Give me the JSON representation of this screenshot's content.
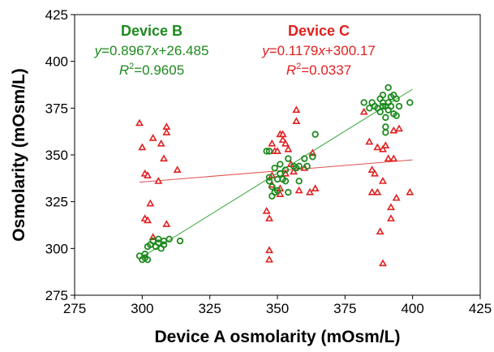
{
  "chart_data": {
    "type": "scatter",
    "xlabel": "Device A osmolarity (mOsm/L)",
    "ylabel": "Osmolarity (mOsm/L)",
    "xlim": [
      275,
      425
    ],
    "ylim": [
      275,
      425
    ],
    "xticks": [
      275,
      300,
      325,
      350,
      375,
      400,
      425
    ],
    "yticks": [
      275,
      300,
      325,
      350,
      375,
      400,
      425
    ],
    "xtick_labels": [
      "275",
      "300",
      "325",
      "350",
      "375",
      "400",
      "425"
    ],
    "ytick_labels": [
      "275",
      "300",
      "325",
      "350",
      "375",
      "400",
      "425"
    ],
    "grid": false,
    "legend": "none",
    "series": [
      {
        "name": "Device B",
        "marker": "circle",
        "color": "#1e8a1e",
        "line_color": "#3aa53a",
        "equation_prefix": "y",
        "equation_mid": "=0.8967",
        "equation_var": "x",
        "equation_suffix": "+26.485",
        "r2_label": "R",
        "r2_sup": "2",
        "r2_value": "=0.9605",
        "fit": {
          "slope": 0.8967,
          "intercept": 26.485,
          "x_range": [
            299,
            400
          ]
        },
        "points": [
          [
            299,
            296
          ],
          [
            300,
            294
          ],
          [
            301,
            295
          ],
          [
            302,
            294
          ],
          [
            301,
            297
          ],
          [
            302,
            301
          ],
          [
            303,
            302
          ],
          [
            304,
            304
          ],
          [
            305,
            301
          ],
          [
            306,
            303
          ],
          [
            306,
            305
          ],
          [
            307,
            300
          ],
          [
            308,
            302
          ],
          [
            308,
            304
          ],
          [
            310,
            305
          ],
          [
            314,
            304
          ],
          [
            346,
            352
          ],
          [
            347,
            352
          ],
          [
            347,
            338
          ],
          [
            347,
            336
          ],
          [
            348,
            333
          ],
          [
            348,
            328
          ],
          [
            349,
            343
          ],
          [
            349,
            330
          ],
          [
            350,
            331
          ],
          [
            350,
            337
          ],
          [
            351,
            345
          ],
          [
            351,
            340
          ],
          [
            352,
            337
          ],
          [
            353,
            336
          ],
          [
            353,
            342
          ],
          [
            354,
            330
          ],
          [
            354,
            348
          ],
          [
            356,
            344
          ],
          [
            357,
            343
          ],
          [
            358,
            344
          ],
          [
            358,
            336
          ],
          [
            360,
            348
          ],
          [
            361,
            344
          ],
          [
            363,
            349
          ],
          [
            364,
            361
          ],
          [
            382,
            378
          ],
          [
            384,
            375
          ],
          [
            385,
            378
          ],
          [
            386,
            376
          ],
          [
            387,
            375
          ],
          [
            388,
            380
          ],
          [
            388,
            373
          ],
          [
            389,
            382
          ],
          [
            389,
            378
          ],
          [
            390,
            370
          ],
          [
            390,
            365
          ],
          [
            390,
            362
          ],
          [
            391,
            386
          ],
          [
            391,
            378
          ],
          [
            391,
            374
          ],
          [
            392,
            381
          ],
          [
            392,
            376
          ],
          [
            393,
            382
          ],
          [
            393,
            372
          ],
          [
            394,
            380
          ],
          [
            394,
            371
          ],
          [
            395,
            376
          ],
          [
            399,
            378
          ],
          [
            390,
            376
          ],
          [
            389,
            376
          ]
        ]
      },
      {
        "name": "Device C",
        "marker": "triangle",
        "color": "#e02020",
        "line_color": "#e05050",
        "equation_prefix": "y",
        "equation_mid": "=0.1179",
        "equation_var": "x",
        "equation_suffix": "+300.17",
        "r2_label": "R",
        "r2_sup": "2",
        "r2_value": "=0.0337",
        "fit": {
          "slope": 0.1179,
          "intercept": 300.17,
          "x_range": [
            299,
            400
          ]
        },
        "points": [
          [
            299,
            367
          ],
          [
            300,
            354
          ],
          [
            301,
            340
          ],
          [
            301,
            316
          ],
          [
            302,
            315
          ],
          [
            302,
            339
          ],
          [
            303,
            324
          ],
          [
            304,
            306
          ],
          [
            304,
            359
          ],
          [
            306,
            336
          ],
          [
            307,
            356
          ],
          [
            308,
            348
          ],
          [
            309,
            313
          ],
          [
            309,
            365
          ],
          [
            309,
            362
          ],
          [
            313,
            342
          ],
          [
            346,
            320
          ],
          [
            347,
            316
          ],
          [
            347,
            299
          ],
          [
            347,
            294
          ],
          [
            348,
            334
          ],
          [
            348,
            339
          ],
          [
            348,
            356
          ],
          [
            349,
            352
          ],
          [
            350,
            352
          ],
          [
            351,
            361
          ],
          [
            351,
            332
          ],
          [
            351,
            329
          ],
          [
            352,
            361
          ],
          [
            352,
            358
          ],
          [
            353,
            340
          ],
          [
            353,
            356
          ],
          [
            354,
            353
          ],
          [
            355,
            345
          ],
          [
            356,
            341
          ],
          [
            357,
            374
          ],
          [
            357,
            368
          ],
          [
            358,
            331
          ],
          [
            360,
            343
          ],
          [
            362,
            330
          ],
          [
            363,
            351
          ],
          [
            364,
            332
          ],
          [
            382,
            373
          ],
          [
            384,
            357
          ],
          [
            385,
            342
          ],
          [
            385,
            330
          ],
          [
            386,
            340
          ],
          [
            387,
            330
          ],
          [
            387,
            354
          ],
          [
            388,
            309
          ],
          [
            389,
            353
          ],
          [
            389,
            336
          ],
          [
            389,
            292
          ],
          [
            390,
            355
          ],
          [
            391,
            348
          ],
          [
            392,
            322
          ],
          [
            392,
            316
          ],
          [
            393,
            348
          ],
          [
            393,
            363
          ],
          [
            394,
            327
          ],
          [
            395,
            364
          ],
          [
            399,
            330
          ]
        ]
      }
    ]
  }
}
